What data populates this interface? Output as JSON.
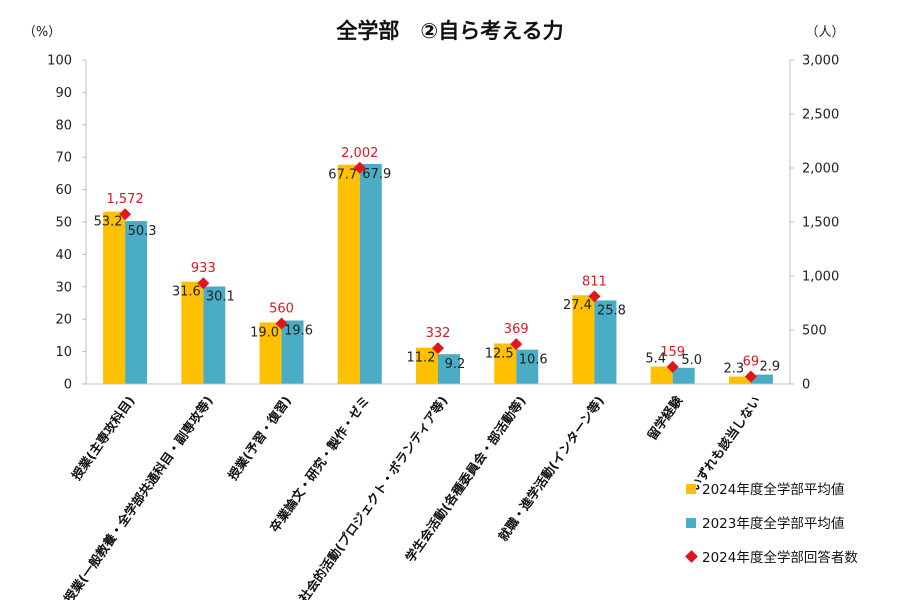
{
  "chart_data": {
    "type": "bar",
    "title": "全学部　②自ら考える力",
    "left_axis_unit": "（%）",
    "right_axis_unit": "（人）",
    "left_ylim": [
      0,
      100
    ],
    "left_ticks": [
      0,
      10,
      20,
      30,
      40,
      50,
      60,
      70,
      80,
      90,
      100
    ],
    "right_ylim": [
      0,
      3000
    ],
    "right_ticks": [
      "0",
      "500",
      "1,000",
      "1,500",
      "2,000",
      "2,500",
      "3,000"
    ],
    "categories": [
      "授業(主専攻科目)",
      "授業(一般教養・全学部共通科目・副専攻等)",
      "授業(予習・復習)",
      "卒業論文・研究・製作・ゼミ",
      "社会的活動(プロジェクト・ボランティア等)",
      "学生会活動(各種委員会・部活動等)",
      "就職・進学活動(インターン等)",
      "留学経験",
      "いずれも該当しない"
    ],
    "series": [
      {
        "name": "2024年度全学部平均値",
        "type": "bar",
        "axis": "left",
        "color": "#FFC000",
        "values": [
          53.2,
          31.6,
          19.0,
          67.7,
          11.2,
          12.5,
          27.4,
          5.4,
          2.3
        ],
        "labels": [
          "53.2",
          "31.6",
          "19.0",
          "67.7",
          "11.2",
          "12.5",
          "27.4",
          "5.4",
          "2.3"
        ]
      },
      {
        "name": "2023年度全学部平均値",
        "type": "bar",
        "axis": "left",
        "color": "#4BACC6",
        "values": [
          50.3,
          30.1,
          19.6,
          67.9,
          9.2,
          10.6,
          25.8,
          5.0,
          2.9
        ],
        "labels": [
          "50.3",
          "30.1",
          "19.6",
          "67.9",
          "9.2",
          "10.6",
          "25.8",
          "5.0",
          "2.9"
        ]
      },
      {
        "name": "2024年度全学部回答者数",
        "type": "scatter",
        "axis": "right",
        "color": "#E0161F",
        "values": [
          1572,
          933,
          560,
          2002,
          332,
          369,
          811,
          159,
          69
        ],
        "labels": [
          "1,572",
          "933",
          "560",
          "2,002",
          "332",
          "369",
          "811",
          "159",
          "69"
        ]
      }
    ],
    "grid": false,
    "legend_position": "bottom-right"
  }
}
